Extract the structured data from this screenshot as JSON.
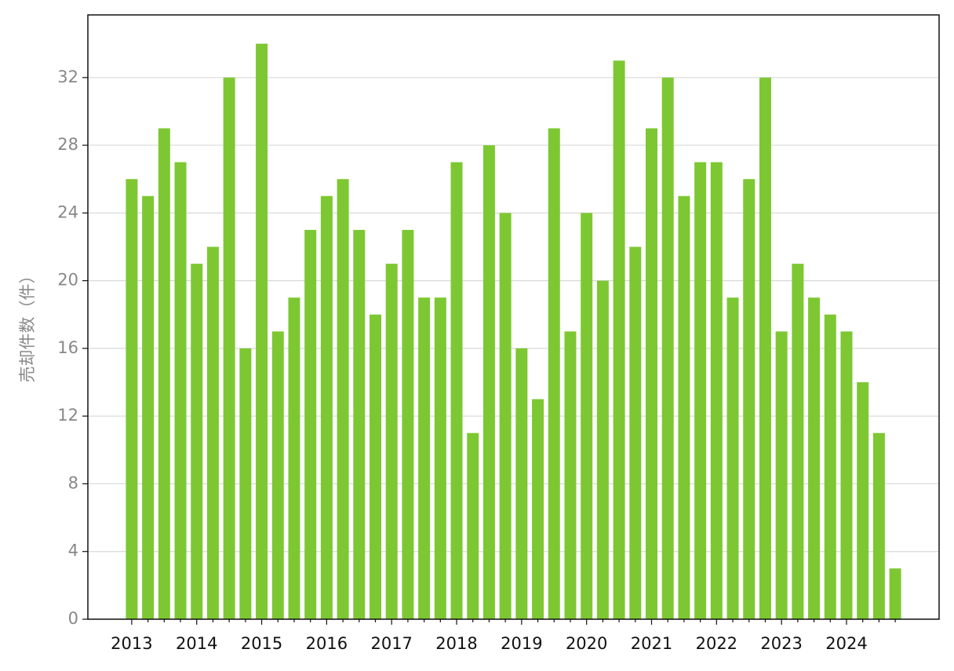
{
  "chart_data": {
    "type": "bar",
    "y_label": "売却件数（件）",
    "categories": [
      "2013",
      null,
      null,
      null,
      "2014",
      null,
      null,
      null,
      "2015",
      null,
      null,
      null,
      "2016",
      null,
      null,
      null,
      "2017",
      null,
      null,
      null,
      "2018",
      null,
      null,
      null,
      "2019",
      null,
      null,
      null,
      "2020",
      null,
      null,
      null,
      "2021",
      null,
      null,
      null,
      "2022",
      null,
      null,
      null,
      "2023",
      null,
      null,
      null,
      "2024",
      null,
      null,
      null
    ],
    "values": [
      26,
      25,
      29,
      27,
      21,
      22,
      32,
      16,
      34,
      17,
      19,
      23,
      25,
      26,
      23,
      18,
      21,
      23,
      19,
      19,
      27,
      11,
      28,
      24,
      16,
      13,
      29,
      17,
      24,
      20,
      33,
      22,
      29,
      32,
      25,
      27,
      27,
      19,
      26,
      32,
      17,
      21,
      19,
      18,
      17,
      14,
      11,
      3
    ],
    "color": "#7dc832",
    "ylim": [
      0,
      35.7
    ],
    "yticks": [
      0,
      4,
      8,
      12,
      16,
      20,
      24,
      28,
      32
    ],
    "grid": true
  }
}
